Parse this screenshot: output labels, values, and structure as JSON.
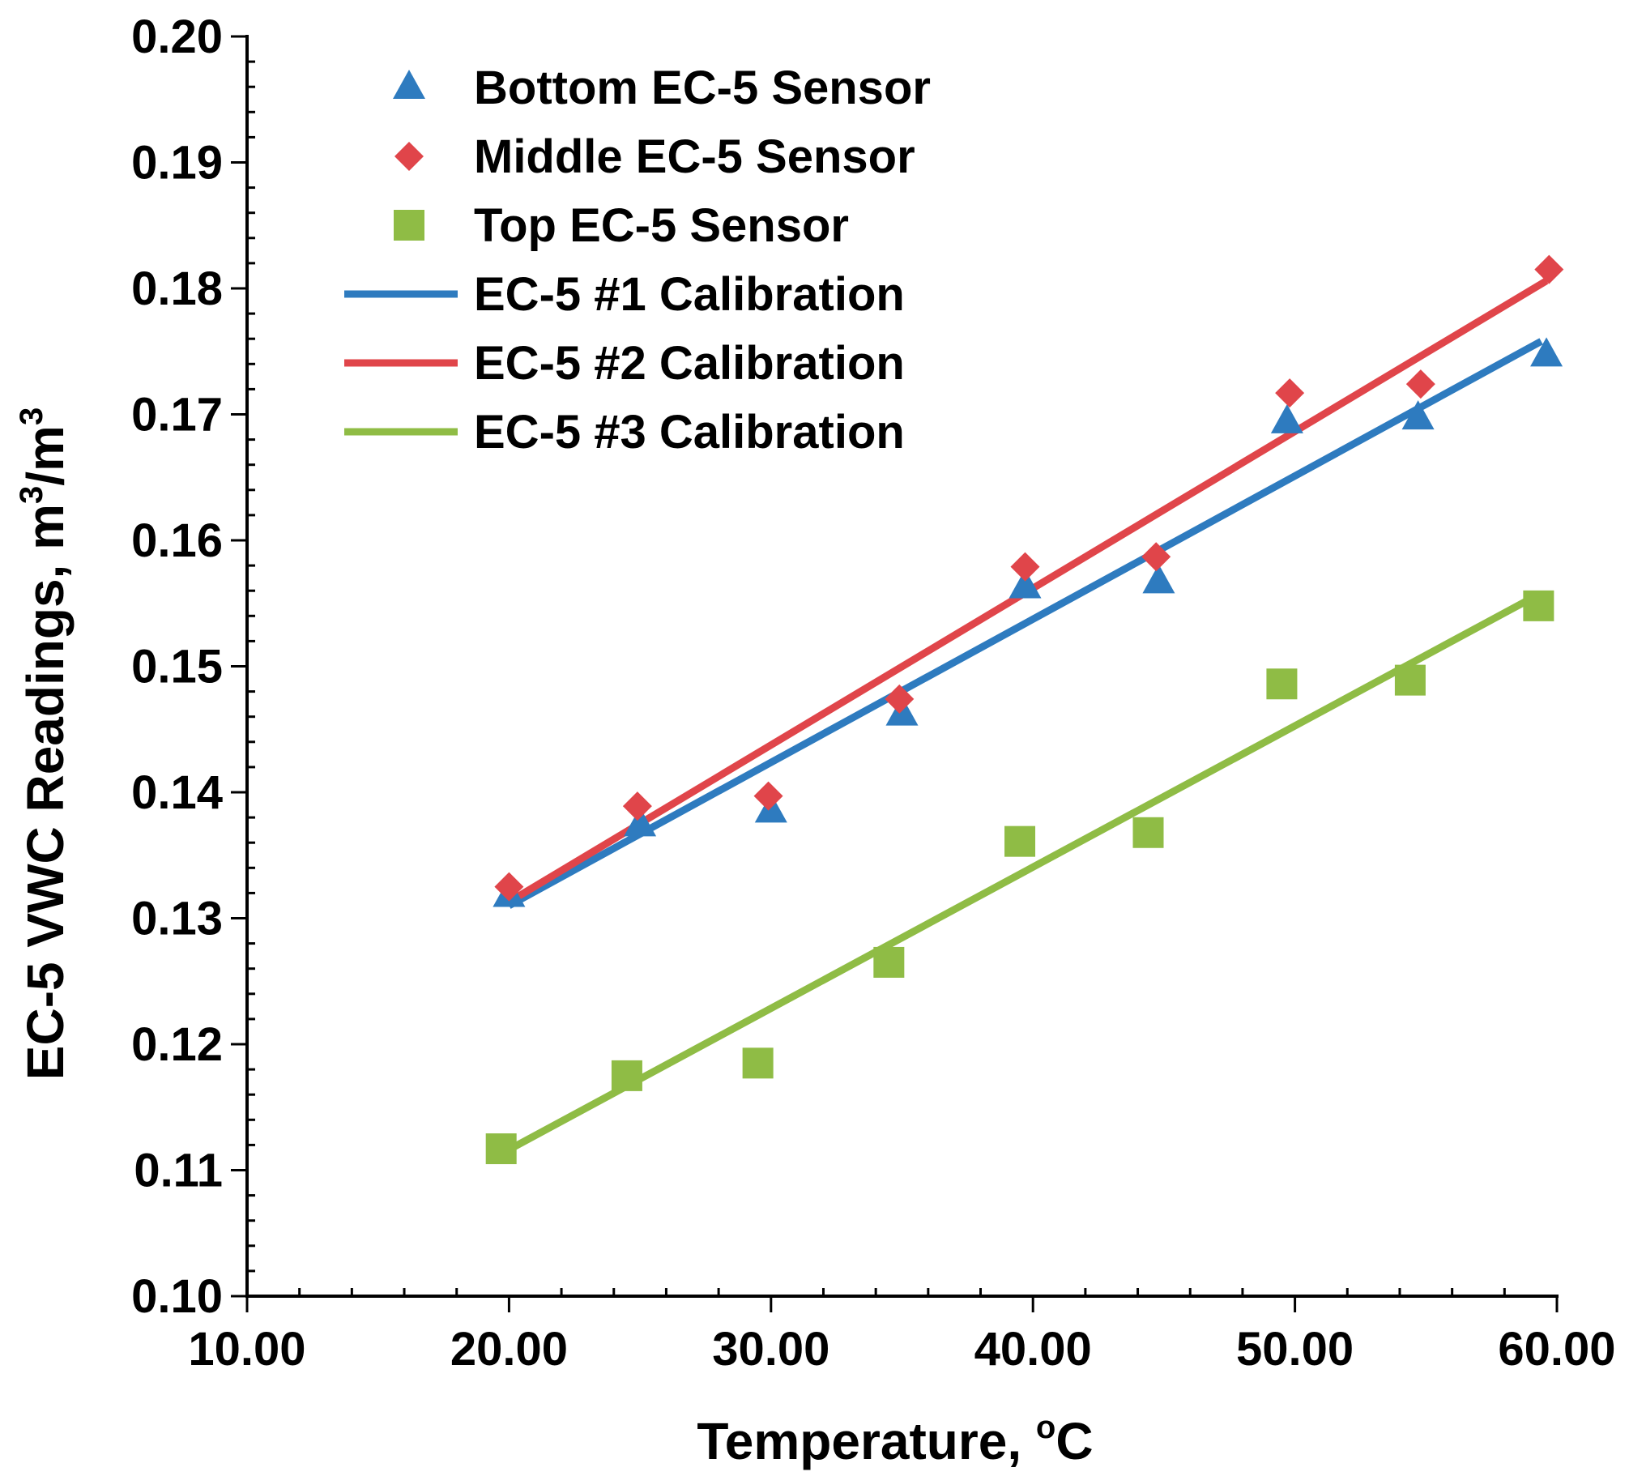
{
  "chart_data": {
    "type": "scatter",
    "title": "",
    "xlabel": "Temperature, ",
    "xlabel_unit": "C",
    "xlabel_unit_sup": "o",
    "ylabel": "EC-5 VWC Readings, m",
    "ylabel_sup1": "3",
    "ylabel_mid": "/m",
    "ylabel_sup2": "3",
    "xlim": [
      10,
      60
    ],
    "ylim": [
      0.1,
      0.2
    ],
    "x_ticks": [
      "10.00",
      "20.00",
      "30.00",
      "40.00",
      "50.00",
      "60.00"
    ],
    "x_tick_values": [
      10,
      20,
      30,
      40,
      50,
      60
    ],
    "y_ticks": [
      "0.10",
      "0.11",
      "0.12",
      "0.13",
      "0.14",
      "0.15",
      "0.16",
      "0.17",
      "0.18",
      "0.19",
      "0.20"
    ],
    "y_tick_values": [
      0.1,
      0.11,
      0.12,
      0.13,
      0.14,
      0.15,
      0.16,
      0.17,
      0.18,
      0.19,
      0.2
    ],
    "grid": false,
    "legend_position": "top-left",
    "series": [
      {
        "name": "Bottom EC-5 Sensor",
        "kind": "scatter",
        "marker": "triangle",
        "color": "#2E7BBF",
        "x": [
          20.0,
          25.0,
          30.0,
          35.0,
          39.7,
          44.8,
          49.7,
          54.7,
          59.6
        ],
        "y": [
          0.1318,
          0.1374,
          0.1385,
          0.1462,
          0.1563,
          0.1567,
          0.1694,
          0.1697,
          0.1747
        ]
      },
      {
        "name": "Middle EC-5 Sensor",
        "kind": "scatter",
        "marker": "diamond",
        "color": "#E0454A",
        "x": [
          20.0,
          24.9,
          29.9,
          34.9,
          39.7,
          44.7,
          49.8,
          54.8,
          59.7
        ],
        "y": [
          0.1325,
          0.1389,
          0.1397,
          0.1474,
          0.1579,
          0.1587,
          0.1717,
          0.1724,
          0.1815
        ]
      },
      {
        "name": "Top EC-5 Sensor",
        "kind": "scatter",
        "marker": "square",
        "color": "#8FBC45",
        "x": [
          19.7,
          24.5,
          29.5,
          34.5,
          39.5,
          44.4,
          49.5,
          54.4,
          59.3
        ],
        "y": [
          0.1117,
          0.1175,
          0.1185,
          0.1265,
          0.1361,
          0.1368,
          0.1486,
          0.1489,
          0.1548
        ]
      },
      {
        "name": "EC-5 #1 Calibration",
        "kind": "line",
        "color": "#2E7BBF",
        "x": [
          20.0,
          59.4
        ],
        "y": [
          0.131,
          0.1758
        ]
      },
      {
        "name": "EC-5 #2 Calibration",
        "kind": "line",
        "color": "#E0454A",
        "x": [
          20.0,
          59.6
        ],
        "y": [
          0.1313,
          0.1806
        ]
      },
      {
        "name": "EC-5 #3 Calibration",
        "kind": "line",
        "color": "#8FBC45",
        "x": [
          19.7,
          59.3
        ],
        "y": [
          0.1113,
          0.1557
        ]
      }
    ]
  }
}
